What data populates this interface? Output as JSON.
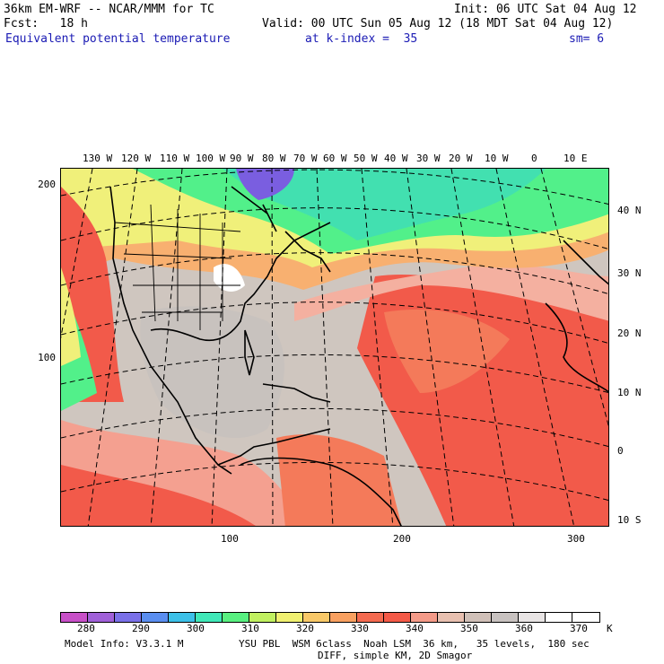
{
  "header": {
    "title_left": "36km EM-WRF -- NCAR/MMM for TC",
    "init": "Init: 06 UTC Sat 04 Aug 12",
    "fcst": "Fcst:   18 h",
    "valid": "Valid: 00 UTC Sun 05 Aug 12 (18 MDT Sat 04 Aug 12)",
    "field": "Equivalent potential temperature",
    "level": "at k-index =  35",
    "smooth": "sm= 6"
  },
  "map": {
    "lon_labels": [
      "130 W",
      "120 W",
      "110 W",
      "100 W",
      "90 W",
      "80 W",
      "70 W",
      "60 W",
      "50 W",
      "40 W",
      "30 W",
      "20 W",
      "10 W",
      "0",
      "10 E"
    ],
    "lat_labels": [
      "40 N",
      "30 N",
      "20 N",
      "10 N",
      "0",
      "10 S"
    ],
    "x_ticks": [
      "100",
      "200",
      "300"
    ],
    "y_ticks": [
      "200",
      "100"
    ],
    "colors": {
      "cold": "#7a5ee0",
      "cool": "#3aa0e0",
      "teal": "#42e0b0",
      "green": "#52f08a",
      "yellow": "#f0f07a",
      "orange": "#f8b070",
      "salmon": "#f47a5a",
      "red": "#f25a4a",
      "pale": "#f4b0a0",
      "tan": "#e0c0b0",
      "gray": "#c8c2be",
      "white": "#ffffff"
    }
  },
  "colorbar": {
    "colors": [
      "#c850c8",
      "#a060d8",
      "#7a70e8",
      "#5a8ef0",
      "#3cc0e8",
      "#40e8b8",
      "#58f080",
      "#c0f060",
      "#f0f070",
      "#f8c868",
      "#f8a060",
      "#f46a50",
      "#f45a48",
      "#f49a88",
      "#e8c0b0",
      "#d0c0b8",
      "#c8c2c0",
      "#e8e4e4",
      "#ffffff",
      "#ffffff"
    ],
    "labels": [
      "280",
      "290",
      "300",
      "310",
      "320",
      "330",
      "340",
      "350",
      "360",
      "370"
    ],
    "unit": "K"
  },
  "footer": {
    "model_info": "Model Info: V3.3.1 M",
    "physics": "YSU PBL  WSM 6class  Noah LSM  36 km,   35 levels,  180 sec",
    "diff": "DIFF, simple KM, 2D Smagor"
  }
}
